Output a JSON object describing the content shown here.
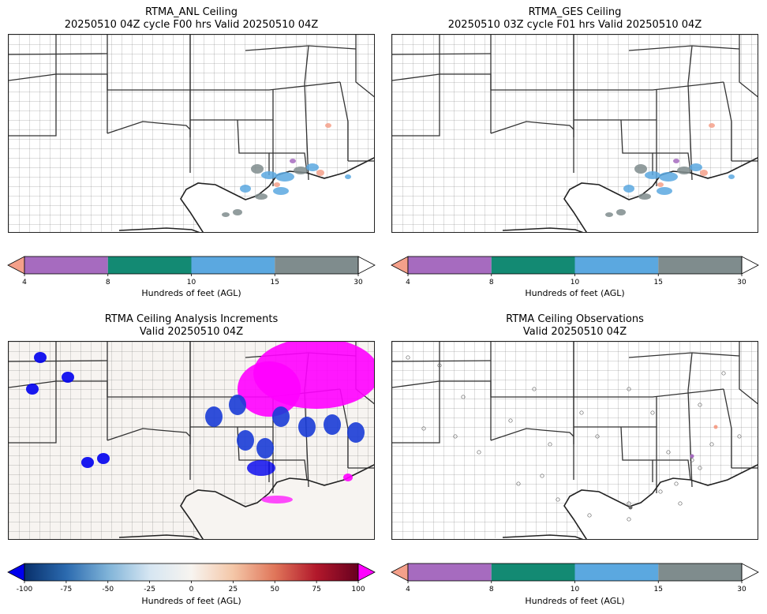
{
  "panels": [
    {
      "title_line1": "RTMA_ANL Ceiling",
      "title_line2": "20250510 04Z cycle F00 hrs Valid 20250510 04Z",
      "colorbar_label": "Hundreds of feet (AGL)",
      "colorbar_ticks": [
        "4",
        "8",
        "10",
        "15",
        "30"
      ]
    },
    {
      "title_line1": "RTMA_GES Ceiling",
      "title_line2": "20250510 03Z cycle F01 hrs Valid 20250510 04Z",
      "colorbar_label": "Hundreds of feet (AGL)",
      "colorbar_ticks": [
        "4",
        "8",
        "10",
        "15",
        "30"
      ]
    },
    {
      "title_line1": "RTMA Ceiling Analysis Increments",
      "title_line2": "Valid 20250510 04Z",
      "colorbar_label": "Hundreds of feet (AGL)",
      "colorbar_ticks": [
        "-100",
        "-75",
        "-50",
        "-25",
        "0",
        "25",
        "50",
        "75",
        "100"
      ]
    },
    {
      "title_line1": "RTMA Ceiling Observations",
      "title_line2": "Valid 20250510 04Z",
      "colorbar_label": "Hundreds of feet (AGL)",
      "colorbar_ticks": [
        "4",
        "8",
        "10",
        "15",
        "30"
      ]
    }
  ],
  "ceiling_colors": {
    "under": "#f4a08a",
    "4_8": "#a66bbf",
    "8_10": "#138a73",
    "10_15": "#5ba8e0",
    "15_30": "#7f8c8d",
    "over": "#ffffff"
  },
  "increment_colors": {
    "under": "#0000ee",
    "over": "#ff00ff",
    "ramp": [
      "#08306b",
      "#2b6aaf",
      "#7fb3d8",
      "#d6e6f2",
      "#f7f4f0",
      "#f4c7a8",
      "#e0765a",
      "#b2182b",
      "#67001f"
    ]
  }
}
